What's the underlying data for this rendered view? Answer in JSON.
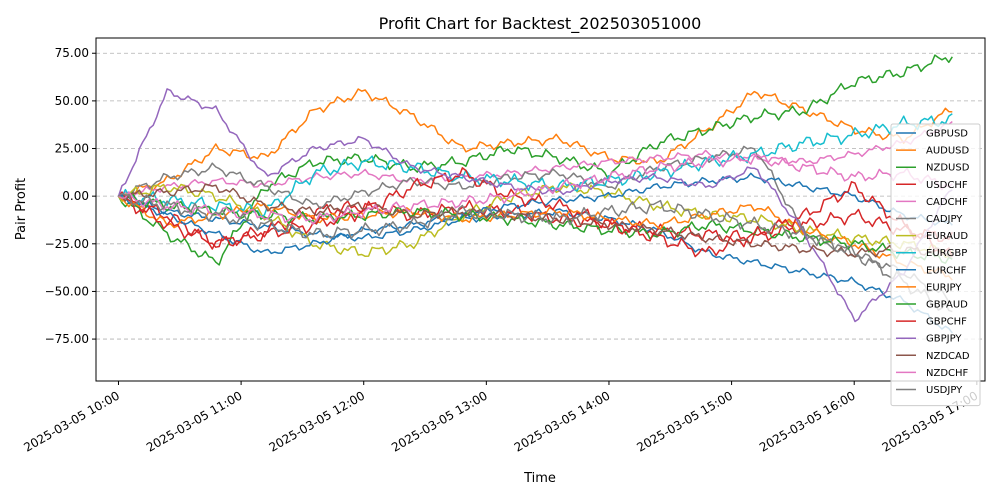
{
  "chart_data": {
    "type": "line",
    "title": "Profit Chart for Backtest_202503051000",
    "xlabel": "Time",
    "ylabel": "Pair Profit",
    "x_start": "2025-03-05 10:00",
    "x_end": "2025-03-05 16:48",
    "xlim": [
      "2025-03-05 09:49",
      "2025-03-05 17:04"
    ],
    "ylim": [
      -97,
      83
    ],
    "x_ticks": [
      "2025-03-05 10:00",
      "2025-03-05 11:00",
      "2025-03-05 12:00",
      "2025-03-05 13:00",
      "2025-03-05 14:00",
      "2025-03-05 15:00",
      "2025-03-05 16:00",
      "2025-03-05 17:00"
    ],
    "y_ticks": [
      "−75.00",
      "−50.00",
      "−25.00",
      "0.00",
      "25.00",
      "50.00",
      "75.00"
    ],
    "y_tick_values": [
      -75,
      -50,
      -25,
      0,
      25,
      50,
      75
    ],
    "grid": "horizontal dashed",
    "legend_position": "right",
    "x_sample_times": [
      "10:00",
      "10:24",
      "10:48",
      "11:12",
      "11:36",
      "12:00",
      "12:24",
      "12:48",
      "13:12",
      "13:36",
      "14:00",
      "14:24",
      "14:48",
      "15:12",
      "15:36",
      "16:00",
      "16:24",
      "16:48"
    ],
    "series": [
      {
        "name": "GBPUSD",
        "color": "#1f77b4",
        "values": [
          0,
          -8,
          -12,
          -16,
          -20,
          -22,
          -18,
          -12,
          -10,
          -8,
          -12,
          -18,
          -30,
          -35,
          -40,
          -45,
          -55,
          -72
        ]
      },
      {
        "name": "AUDUSD",
        "color": "#ff7f0e",
        "values": [
          0,
          8,
          25,
          20,
          45,
          55,
          42,
          25,
          28,
          30,
          20,
          18,
          35,
          55,
          45,
          35,
          30,
          46
        ]
      },
      {
        "name": "NZDUSD",
        "color": "#2ca02c",
        "values": [
          0,
          -20,
          -35,
          5,
          18,
          20,
          15,
          18,
          25,
          20,
          12,
          28,
          35,
          42,
          45,
          60,
          65,
          74
        ]
      },
      {
        "name": "USDCHF",
        "color": "#d62728",
        "values": [
          0,
          -10,
          -25,
          -18,
          -8,
          -5,
          -10,
          -6,
          -8,
          -12,
          -15,
          -18,
          -20,
          -22,
          -15,
          -10,
          -18,
          -22
        ]
      },
      {
        "name": "CADCHF",
        "color": "#e377c2",
        "values": [
          0,
          5,
          8,
          6,
          10,
          12,
          8,
          10,
          12,
          15,
          18,
          20,
          22,
          20,
          18,
          22,
          28,
          38
        ]
      },
      {
        "name": "CADJPY",
        "color": "#7f7f7f",
        "values": [
          0,
          10,
          15,
          5,
          -5,
          2,
          8,
          5,
          10,
          12,
          5,
          15,
          20,
          25,
          -20,
          -30,
          -40,
          -55
        ]
      },
      {
        "name": "EURAUD",
        "color": "#bcbd22",
        "values": [
          0,
          5,
          0,
          -10,
          -25,
          -30,
          -25,
          -10,
          0,
          5,
          2,
          -5,
          -10,
          -12,
          -18,
          -22,
          -25,
          -30
        ]
      },
      {
        "name": "EURGBP",
        "color": "#17becf",
        "values": [
          0,
          -2,
          -5,
          -8,
          12,
          18,
          15,
          10,
          8,
          5,
          8,
          12,
          18,
          22,
          28,
          32,
          38,
          40
        ]
      },
      {
        "name": "EURCHF",
        "color": "#1f77b4",
        "values": [
          0,
          -10,
          -20,
          -30,
          -25,
          -18,
          -15,
          -10,
          -5,
          -2,
          0,
          5,
          8,
          10,
          5,
          0,
          -10,
          -15
        ]
      },
      {
        "name": "EURJPY",
        "color": "#ff7f0e",
        "values": [
          0,
          -15,
          -10,
          -5,
          -12,
          -10,
          -8,
          -12,
          -10,
          -8,
          -12,
          -15,
          -10,
          -5,
          -18,
          -25,
          -35,
          -42
        ]
      },
      {
        "name": "GBPAUD",
        "color": "#2ca02c",
        "values": [
          0,
          -5,
          -8,
          -10,
          -12,
          -10,
          -8,
          -10,
          -12,
          -15,
          -18,
          -20,
          -15,
          -18,
          -22,
          -25,
          -30,
          -33
        ]
      },
      {
        "name": "GBPCHF",
        "color": "#d62728",
        "values": [
          0,
          -15,
          -25,
          -20,
          -15,
          -8,
          5,
          12,
          0,
          -5,
          -15,
          -22,
          -30,
          -20,
          -10,
          5,
          -15,
          -32
        ]
      },
      {
        "name": "GBPJPY",
        "color": "#9467bd",
        "values": [
          0,
          55,
          45,
          10,
          25,
          30,
          15,
          10,
          5,
          2,
          8,
          10,
          5,
          15,
          -20,
          -65,
          -40,
          5
        ]
      },
      {
        "name": "NZDCAD",
        "color": "#8c564b",
        "values": [
          0,
          2,
          5,
          -5,
          -8,
          -5,
          -10,
          -8,
          -10,
          -12,
          -15,
          -18,
          -22,
          -25,
          -28,
          -30,
          -28,
          -30
        ]
      },
      {
        "name": "NZDCHF",
        "color": "#e377c2",
        "values": [
          0,
          -5,
          -8,
          -10,
          -12,
          -8,
          -5,
          -3,
          0,
          5,
          10,
          15,
          18,
          20,
          15,
          10,
          12,
          5
        ]
      },
      {
        "name": "USDJPY",
        "color": "#7f7f7f",
        "values": [
          0,
          -5,
          -10,
          -15,
          -20,
          -18,
          -15,
          -8,
          -10,
          -12,
          -8,
          -5,
          -10,
          -15,
          -20,
          -30,
          -45,
          -62
        ]
      }
    ]
  }
}
